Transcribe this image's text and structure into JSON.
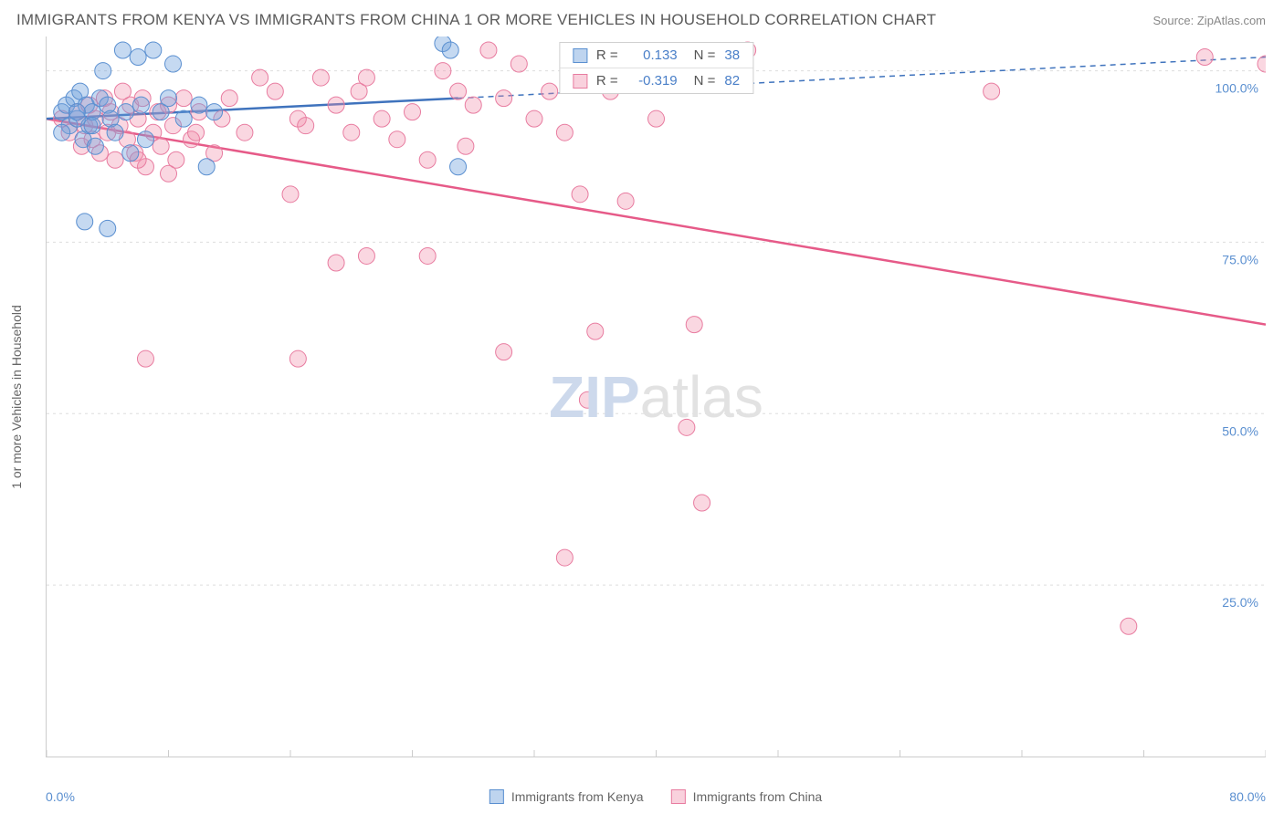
{
  "title": "IMMIGRANTS FROM KENYA VS IMMIGRANTS FROM CHINA 1 OR MORE VEHICLES IN HOUSEHOLD CORRELATION CHART",
  "source": "Source: ZipAtlas.com",
  "y_axis_label": "1 or more Vehicles in Household",
  "watermark_zip": "ZIP",
  "watermark_atlas": "atlas",
  "chart": {
    "type": "scatter",
    "background_color": "#ffffff",
    "border_color": "#cccccc",
    "grid_color": "#dddddd",
    "xlim": [
      0,
      80
    ],
    "ylim": [
      0,
      105
    ],
    "x_ticks": [
      0,
      8,
      16,
      24,
      32,
      40,
      48,
      56,
      64,
      72,
      80
    ],
    "y_ticks": [
      25,
      50,
      75,
      100
    ],
    "y_tick_labels": [
      "25.0%",
      "50.0%",
      "75.0%",
      "100.0%"
    ],
    "y_tick_color": "#5a8fd0",
    "x_min_label": "0.0%",
    "x_max_label": "80.0%",
    "marker_radius": 9,
    "marker_opacity": 0.4,
    "series": [
      {
        "name": "Immigrants from Kenya",
        "color_fill": "rgba(110,160,220,0.4)",
        "color_stroke": "#5a8fd0",
        "R": "0.133",
        "N": "38",
        "trend": {
          "x1": 0,
          "y1": 93,
          "x2": 27,
          "y2": 96,
          "x2_dash": 80,
          "y2_dash": 102,
          "color": "#3f73bd",
          "width": 2.5
        },
        "points": [
          [
            1,
            94
          ],
          [
            1.3,
            95
          ],
          [
            1.5,
            92
          ],
          [
            1.8,
            96
          ],
          [
            2,
            93
          ],
          [
            2.2,
            97
          ],
          [
            2.4,
            90
          ],
          [
            2.6,
            95
          ],
          [
            2.8,
            92
          ],
          [
            3,
            94
          ],
          [
            3.2,
            89
          ],
          [
            3.5,
            96
          ],
          [
            3.7,
            100
          ],
          [
            4,
            95
          ],
          [
            4.2,
            93
          ],
          [
            4.5,
            91
          ],
          [
            5,
            103
          ],
          [
            5.2,
            94
          ],
          [
            5.5,
            88
          ],
          [
            6,
            102
          ],
          [
            6.2,
            95
          ],
          [
            6.5,
            90
          ],
          [
            7,
            103
          ],
          [
            7.5,
            94
          ],
          [
            8,
            96
          ],
          [
            8.3,
            101
          ],
          [
            9,
            93
          ],
          [
            10,
            95
          ],
          [
            10.5,
            86
          ],
          [
            11,
            94
          ],
          [
            2.5,
            78
          ],
          [
            4,
            77
          ],
          [
            26,
            104
          ],
          [
            26.5,
            103
          ],
          [
            27,
            86
          ],
          [
            1,
            91
          ],
          [
            2,
            94
          ],
          [
            3,
            92
          ]
        ]
      },
      {
        "name": "Immigrants from China",
        "color_fill": "rgba(240,140,170,0.35)",
        "color_stroke": "#e87ca0",
        "R": "-0.319",
        "N": "82",
        "trend": {
          "x1": 0,
          "y1": 93,
          "x2": 80,
          "y2": 63,
          "color": "#e65a88",
          "width": 2.5
        },
        "points": [
          [
            1,
            93
          ],
          [
            1.5,
            91
          ],
          [
            2,
            94
          ],
          [
            2.3,
            89
          ],
          [
            2.5,
            92
          ],
          [
            2.8,
            95
          ],
          [
            3,
            90
          ],
          [
            3.2,
            93
          ],
          [
            3.5,
            88
          ],
          [
            3.8,
            96
          ],
          [
            4,
            91
          ],
          [
            4.2,
            94
          ],
          [
            4.5,
            87
          ],
          [
            4.8,
            92
          ],
          [
            5,
            97
          ],
          [
            5.3,
            90
          ],
          [
            5.5,
            95
          ],
          [
            5.8,
            88
          ],
          [
            6,
            93
          ],
          [
            6.3,
            96
          ],
          [
            6.5,
            86
          ],
          [
            7,
            91
          ],
          [
            7.3,
            94
          ],
          [
            7.5,
            89
          ],
          [
            8,
            95
          ],
          [
            8.3,
            92
          ],
          [
            8.5,
            87
          ],
          [
            9,
            96
          ],
          [
            9.5,
            90
          ],
          [
            10,
            94
          ],
          [
            11,
            88
          ],
          [
            11.5,
            93
          ],
          [
            12,
            96
          ],
          [
            13,
            91
          ],
          [
            14,
            99
          ],
          [
            15,
            97
          ],
          [
            16,
            82
          ],
          [
            16.5,
            93
          ],
          [
            17,
            92
          ],
          [
            18,
            99
          ],
          [
            19,
            95
          ],
          [
            20,
            91
          ],
          [
            20.5,
            97
          ],
          [
            21,
            99
          ],
          [
            22,
            93
          ],
          [
            23,
            90
          ],
          [
            24,
            94
          ],
          [
            25,
            73
          ],
          [
            26,
            100
          ],
          [
            27,
            97
          ],
          [
            27.5,
            89
          ],
          [
            28,
            95
          ],
          [
            29,
            103
          ],
          [
            30,
            96
          ],
          [
            31,
            101
          ],
          [
            32,
            93
          ],
          [
            33,
            97
          ],
          [
            34,
            91
          ],
          [
            35,
            82
          ],
          [
            35.5,
            52
          ],
          [
            36,
            62
          ],
          [
            37,
            97
          ],
          [
            38,
            81
          ],
          [
            40,
            93
          ],
          [
            42,
            48
          ],
          [
            42.5,
            63
          ],
          [
            43,
            37
          ],
          [
            34,
            29
          ],
          [
            6,
            87
          ],
          [
            8,
            85
          ],
          [
            16.5,
            58
          ],
          [
            6.5,
            58
          ],
          [
            30,
            59
          ],
          [
            21,
            73
          ],
          [
            25,
            87
          ],
          [
            19,
            72
          ],
          [
            9.8,
            91
          ],
          [
            46,
            103
          ],
          [
            62,
            97
          ],
          [
            76,
            102
          ],
          [
            71,
            19
          ],
          [
            80,
            101
          ]
        ]
      }
    ]
  },
  "legend_bottom": [
    {
      "swatch": "blue",
      "label": "Immigrants from Kenya"
    },
    {
      "swatch": "pink",
      "label": "Immigrants from China"
    }
  ]
}
